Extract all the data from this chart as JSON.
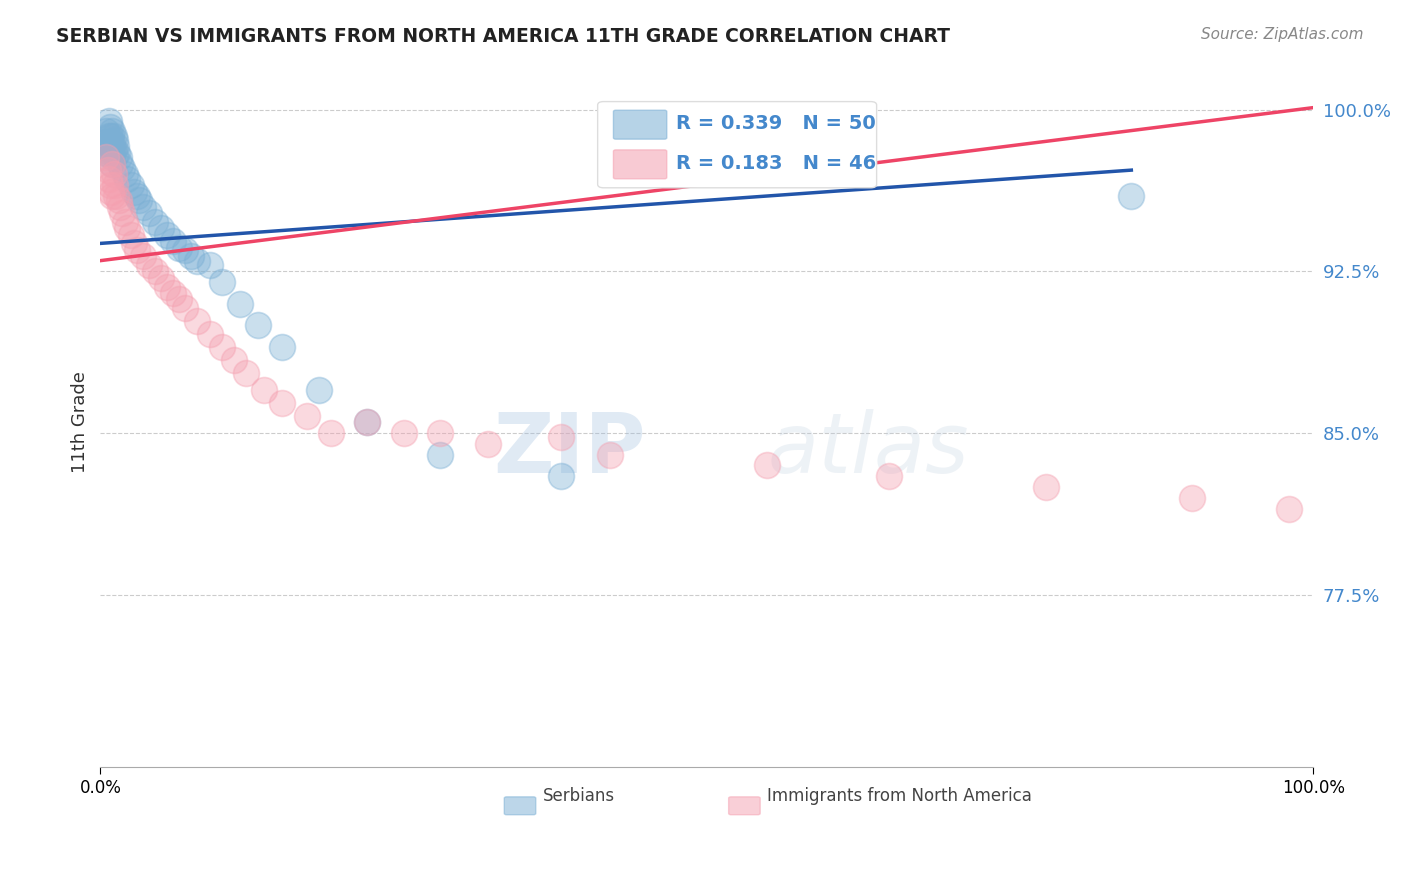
{
  "title": "SERBIAN VS IMMIGRANTS FROM NORTH AMERICA 11TH GRADE CORRELATION CHART",
  "source_text": "Source: ZipAtlas.com",
  "ylabel": "11th Grade",
  "xlim": [
    0.0,
    1.0
  ],
  "ylim": [
    0.695,
    1.015
  ],
  "yticks": [
    0.775,
    0.85,
    0.925,
    1.0
  ],
  "ytick_labels": [
    "77.5%",
    "85.0%",
    "92.5%",
    "100.0%"
  ],
  "xticks": [
    0.0,
    1.0
  ],
  "xtick_labels": [
    "0.0%",
    "100.0%"
  ],
  "blue_R": 0.339,
  "blue_N": 50,
  "pink_R": 0.183,
  "pink_N": 46,
  "blue_color": "#7BAFD4",
  "pink_color": "#F4A0B0",
  "legend_label_blue": "Serbians",
  "legend_label_pink": "Immigrants from North America",
  "watermark_zip": "ZIP",
  "watermark_atlas": "atlas",
  "blue_line_x": [
    0.0,
    0.85
  ],
  "blue_line_y": [
    0.938,
    0.972
  ],
  "pink_line_x": [
    0.0,
    1.0
  ],
  "pink_line_y": [
    0.93,
    1.001
  ],
  "blue_scatter_x": [
    0.005,
    0.005,
    0.005,
    0.007,
    0.007,
    0.007,
    0.008,
    0.008,
    0.009,
    0.009,
    0.01,
    0.01,
    0.01,
    0.01,
    0.01,
    0.011,
    0.011,
    0.012,
    0.012,
    0.013,
    0.014,
    0.015,
    0.016,
    0.018,
    0.02,
    0.022,
    0.025,
    0.028,
    0.03,
    0.032,
    0.035,
    0.04,
    0.045,
    0.05,
    0.055,
    0.06,
    0.065,
    0.07,
    0.075,
    0.08,
    0.09,
    0.1,
    0.115,
    0.13,
    0.15,
    0.18,
    0.22,
    0.28,
    0.38,
    0.85
  ],
  "blue_scatter_y": [
    0.99,
    0.985,
    0.98,
    0.995,
    0.988,
    0.982,
    0.992,
    0.985,
    0.988,
    0.98,
    0.99,
    0.985,
    0.982,
    0.978,
    0.975,
    0.988,
    0.982,
    0.986,
    0.979,
    0.983,
    0.98,
    0.978,
    0.975,
    0.973,
    0.97,
    0.968,
    0.965,
    0.962,
    0.96,
    0.958,
    0.955,
    0.952,
    0.948,
    0.945,
    0.942,
    0.939,
    0.936,
    0.935,
    0.932,
    0.93,
    0.928,
    0.92,
    0.91,
    0.9,
    0.89,
    0.87,
    0.855,
    0.84,
    0.83,
    0.96
  ],
  "pink_scatter_x": [
    0.005,
    0.006,
    0.007,
    0.008,
    0.009,
    0.01,
    0.01,
    0.011,
    0.012,
    0.013,
    0.015,
    0.016,
    0.018,
    0.02,
    0.022,
    0.025,
    0.028,
    0.03,
    0.035,
    0.04,
    0.045,
    0.05,
    0.055,
    0.06,
    0.065,
    0.07,
    0.08,
    0.09,
    0.1,
    0.11,
    0.12,
    0.135,
    0.15,
    0.17,
    0.19,
    0.22,
    0.25,
    0.28,
    0.32,
    0.38,
    0.42,
    0.55,
    0.65,
    0.78,
    0.9,
    0.98
  ],
  "pink_scatter_y": [
    0.978,
    0.972,
    0.968,
    0.965,
    0.962,
    0.975,
    0.96,
    0.97,
    0.965,
    0.96,
    0.958,
    0.955,
    0.952,
    0.948,
    0.945,
    0.942,
    0.938,
    0.935,
    0.932,
    0.928,
    0.925,
    0.922,
    0.918,
    0.915,
    0.912,
    0.908,
    0.902,
    0.896,
    0.89,
    0.884,
    0.878,
    0.87,
    0.864,
    0.858,
    0.85,
    0.855,
    0.85,
    0.85,
    0.845,
    0.848,
    0.84,
    0.835,
    0.83,
    0.825,
    0.82,
    0.815
  ],
  "background_color": "#FFFFFF",
  "grid_color": "#CCCCCC",
  "title_color": "#222222",
  "source_color": "#888888",
  "axis_label_color": "#333333",
  "tick_color_y": "#4488CC",
  "blue_line_color": "#2255AA",
  "pink_line_color": "#EE4466"
}
